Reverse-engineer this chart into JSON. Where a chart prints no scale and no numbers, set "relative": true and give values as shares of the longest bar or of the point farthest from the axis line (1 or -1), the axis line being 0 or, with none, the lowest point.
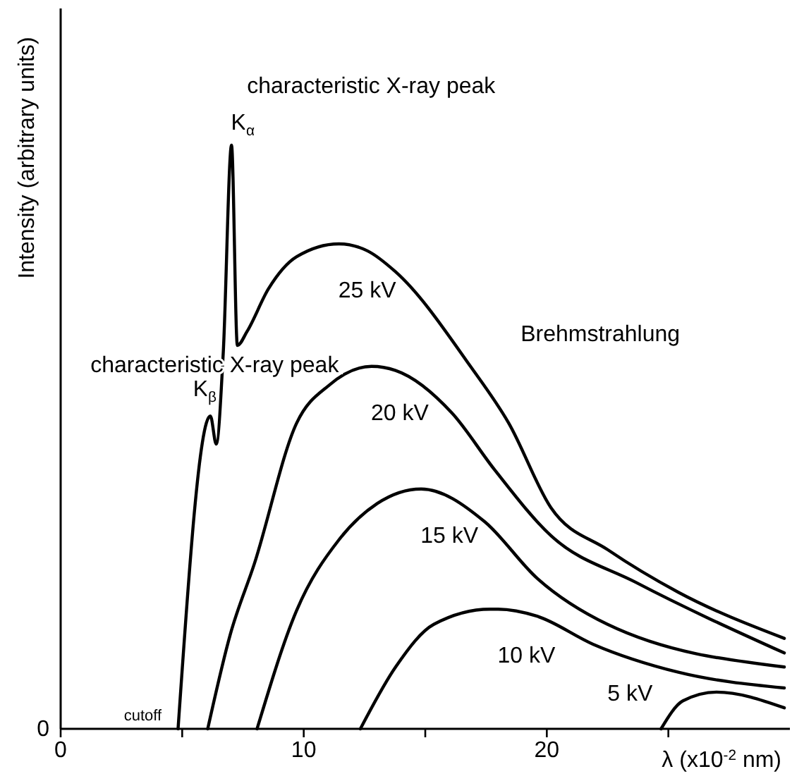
{
  "chart_data": {
    "type": "line",
    "relative": true,
    "ylabel": "Intensity (arbitrary units)",
    "xlabel": "λ (x10$^{-2}$ nm)",
    "xlim": [
      0,
      30
    ],
    "xticks": [
      0,
      {
        "value": 5,
        "label": null
      },
      10,
      {
        "value": 15,
        "label": null
      },
      20,
      {
        "value": 25,
        "label": null
      }
    ],
    "tick_labels": "x",
    "marker": "none",
    "line_style": "solid",
    "series": [
      {
        "name": "25 kV",
        "color": "#000000",
        "x": [
          4.83,
          6.16,
          6.4,
          6.69,
          7.03,
          7.27,
          7.67,
          8.55,
          9.71,
          11.45,
          12.62,
          13.78,
          16.86,
          18.43,
          20.17,
          22.5,
          25.41,
          29.77
        ],
        "values": [
          0,
          0.536,
          0.488,
          0.645,
          1.0,
          0.657,
          0.681,
          0.754,
          0.809,
          0.831,
          0.819,
          0.783,
          0.621,
          0.524,
          0.379,
          0.307,
          0.234,
          0.155
        ]
      },
      {
        "name": "20 kV",
        "color": "#000000",
        "x": [
          6.05,
          6.98,
          7.97,
          9.71,
          11.05,
          12.79,
          13.78,
          16.1,
          17.85,
          20.17,
          23.66,
          29.77
        ],
        "values": [
          0,
          0.162,
          0.283,
          0.524,
          0.589,
          0.621,
          0.614,
          0.541,
          0.444,
          0.331,
          0.251,
          0.13
        ]
      },
      {
        "name": "15 kV",
        "color": "#000000",
        "x": [
          8.08,
          9.71,
          11.45,
          13.02,
          14.83,
          17.44,
          19.6,
          22.5,
          29.77
        ],
        "values": [
          0,
          0.203,
          0.324,
          0.386,
          0.411,
          0.355,
          0.258,
          0.179,
          0.106
        ]
      },
      {
        "name": "10 kV",
        "color": "#000000",
        "x": [
          12.33,
          13.78,
          15.35,
          17.67,
          18.0,
          19.6,
          21.9,
          25.41,
          29.77
        ],
        "values": [
          0,
          0.106,
          0.179,
          0.205,
          0.205,
          0.193,
          0.145,
          0.097,
          0.07
        ]
      },
      {
        "name": "5 kV",
        "color": "#000000",
        "x": [
          24.7,
          25.6,
          26.98,
          29.77
        ],
        "values": [
          0,
          0.048,
          0.063,
          0.036
        ]
      }
    ],
    "annotations": [
      "0",
      {
        "text": "characteristic X-ray peak",
        "x": 7.03,
        "y": 1.0
      },
      {
        "text": "K$_{α}$",
        "x": 7.03,
        "y": 1.0
      },
      {
        "text": "characteristic X-ray peak",
        "x": 6.16,
        "y": 0.536
      },
      {
        "text": "K$_{β}$",
        "x": 6.16,
        "y": 0.536
      },
      {
        "text": "Brehmstrahlung",
        "x": 16.86,
        "y": 0.621
      },
      {
        "text": "cutoff",
        "x": 4.83,
        "y": 0
      }
    ]
  }
}
